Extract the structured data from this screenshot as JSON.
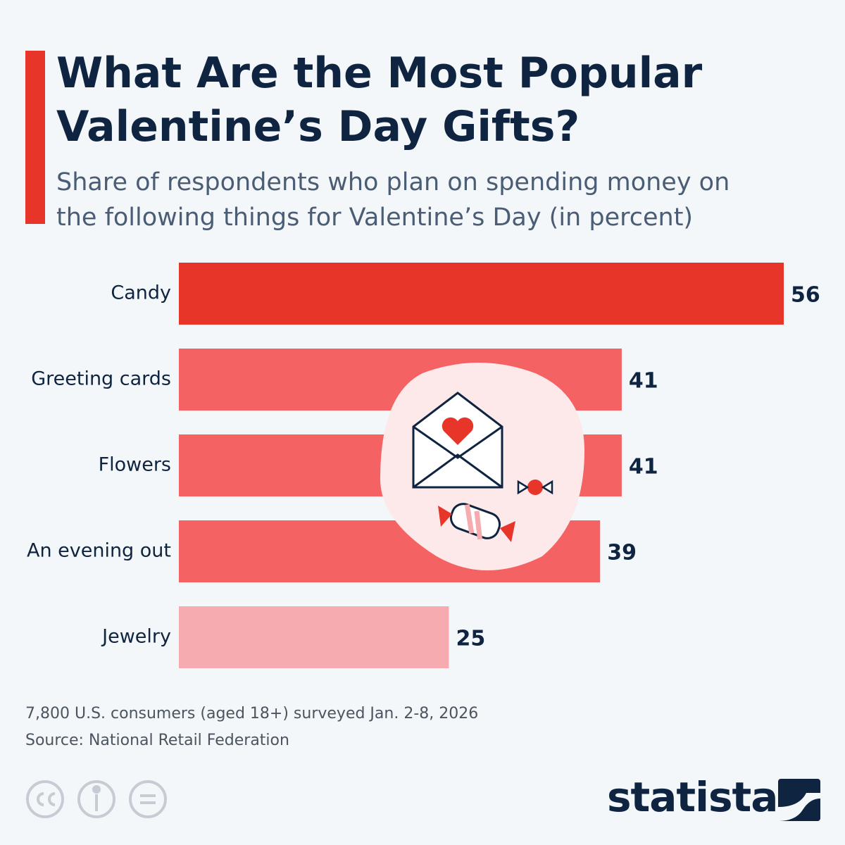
{
  "chart_data": {
    "type": "hbar",
    "title": "What Are the Most Popular Valentine’s Day Gifts?",
    "subtitle": "Share of respondents who plan on spending money on the following things for Valentine’s Day (in percent)",
    "categories": [
      "Candy",
      "Greeting cards",
      "Flowers",
      "An evening out",
      "Jewelry"
    ],
    "values": [
      56,
      41,
      41,
      39,
      25
    ],
    "colors": [
      "#e8352a",
      "#f46264",
      "#f46264",
      "#f46264",
      "#f6abb0"
    ],
    "note": "7,800 U.S. consumers (aged 18+) surveyed Jan. 2-8, 2026",
    "source": "Source: National Retail Federation",
    "brand": "statista"
  }
}
